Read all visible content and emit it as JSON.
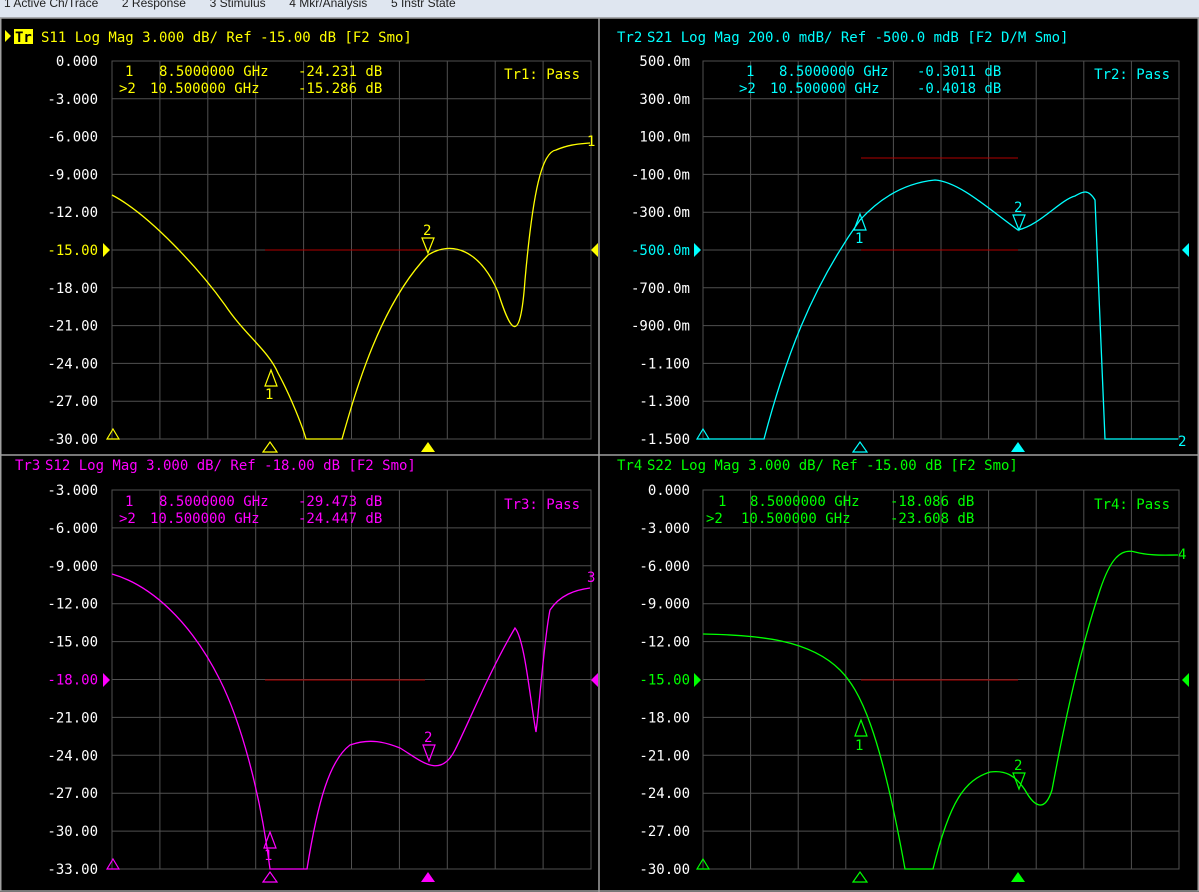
{
  "menubar": {
    "items": [
      "1 Active Ch/Trace",
      "2 Response",
      "3 Stimulus",
      "4 Mkr/Analysis",
      "5 Instr State"
    ]
  },
  "colors": {
    "tr1": "#ffff00",
    "tr2": "#00ffff",
    "tr3": "#ff00ff",
    "tr4": "#00ff00",
    "grid": "#505050",
    "limit": "#b00000",
    "axis_label": "#ffffff"
  },
  "traces": [
    {
      "id": "Tr1",
      "header": "S11 Log Mag 3.000 dB/ Ref -15.00 dB [F2 Smo]",
      "active": true,
      "pass_text": "Tr1: Pass",
      "y_labels": [
        "0.000",
        "-3.000",
        "-6.000",
        "-9.000",
        "-12.00",
        "-15.00",
        "-18.00",
        "-21.00",
        "-24.00",
        "-27.00",
        "-30.00"
      ],
      "ref_index": 5,
      "ref_value": -15.0,
      "scale_per_div": 3.0,
      "markers": [
        {
          "prefix": "1",
          "freq": "8.5000000 GHz",
          "value": "-24.231 dB"
        },
        {
          "prefix": ">2",
          "freq": "10.500000 GHz",
          "value": "-15.286 dB"
        }
      ],
      "trace_number": "1"
    },
    {
      "id": "Tr2",
      "header": "S21 Log Mag 200.0 mdB/ Ref -500.0 mdB [F2 D/M Smo]",
      "active": false,
      "pass_text": "Tr2: Pass",
      "y_labels": [
        "500.0m",
        "300.0m",
        "100.0m",
        "-100.0m",
        "-300.0m",
        "-500.0m",
        "-700.0m",
        "-900.0m",
        "-1.100",
        "-1.300",
        "-1.500"
      ],
      "ref_index": 5,
      "ref_value": -0.5,
      "scale_per_div": 0.2,
      "markers": [
        {
          "prefix": "1",
          "freq": "8.5000000 GHz",
          "value": "-0.3011 dB"
        },
        {
          "prefix": ">2",
          "freq": "10.500000 GHz",
          "value": "-0.4018 dB"
        }
      ],
      "trace_number": "2"
    },
    {
      "id": "Tr3",
      "header": "S12 Log Mag 3.000 dB/ Ref -18.00 dB [F2 Smo]",
      "active": false,
      "pass_text": "Tr3: Pass",
      "y_labels": [
        "-3.000",
        "-6.000",
        "-9.000",
        "-12.00",
        "-15.00",
        "-18.00",
        "-21.00",
        "-24.00",
        "-27.00",
        "-30.00",
        "-33.00"
      ],
      "ref_index": 5,
      "ref_value": -18.0,
      "scale_per_div": 3.0,
      "markers": [
        {
          "prefix": "1",
          "freq": "8.5000000 GHz",
          "value": "-29.473 dB"
        },
        {
          "prefix": ">2",
          "freq": "10.500000 GHz",
          "value": "-24.447 dB"
        }
      ],
      "trace_number": "3"
    },
    {
      "id": "Tr4",
      "header": "S22 Log Mag 3.000 dB/ Ref -15.00 dB [F2 Smo]",
      "active": false,
      "pass_text": "Tr4: Pass",
      "y_labels": [
        "0.000",
        "-3.000",
        "-6.000",
        "-9.000",
        "-12.00",
        "-15.00",
        "-18.00",
        "-21.00",
        "-24.00",
        "-27.00",
        "-30.00"
      ],
      "ref_index": 5,
      "ref_value": -15.0,
      "scale_per_div": 3.0,
      "markers": [
        {
          "prefix": "1",
          "freq": "8.5000000 GHz",
          "value": "-18.086 dB"
        },
        {
          "prefix": ">2",
          "freq": "10.500000 GHz",
          "value": "-23.608 dB"
        }
      ],
      "trace_number": "4"
    }
  ],
  "icons": {
    "marker_stimulus": "triangle-up",
    "active_marker": "triangle-up-filled",
    "ref_level": "triangle-side-filled",
    "marker_on_trace": "triangle-down"
  }
}
